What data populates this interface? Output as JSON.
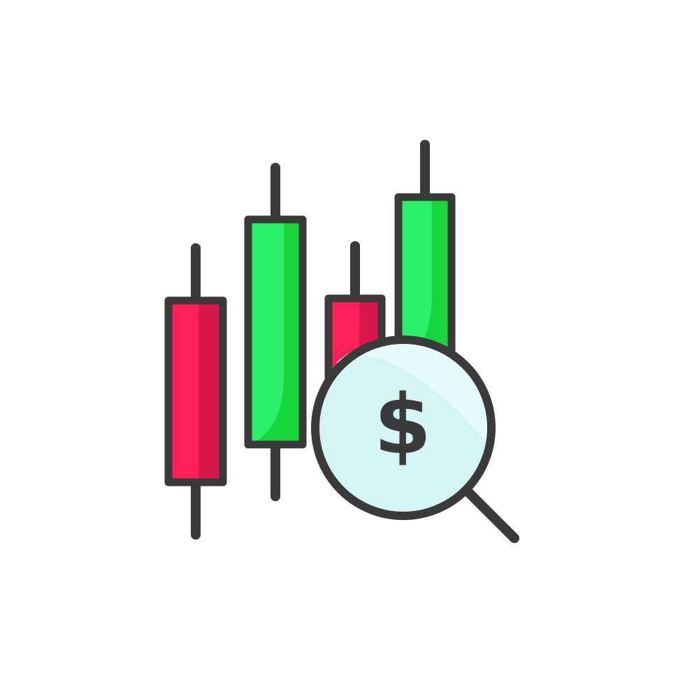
{
  "icon": {
    "symbol": "$",
    "name": "stock-market-analysis-icon"
  },
  "colors": {
    "outline": "#3a3a3a",
    "bearish_main": "#ff1f5a",
    "bearish_shade": "#d8174c",
    "bullish_main": "#2af06a",
    "bullish_shade": "#17d63a",
    "lens": "#d5f5f5",
    "lens_highlight": "#e6fafa",
    "background": "#ffffff"
  }
}
